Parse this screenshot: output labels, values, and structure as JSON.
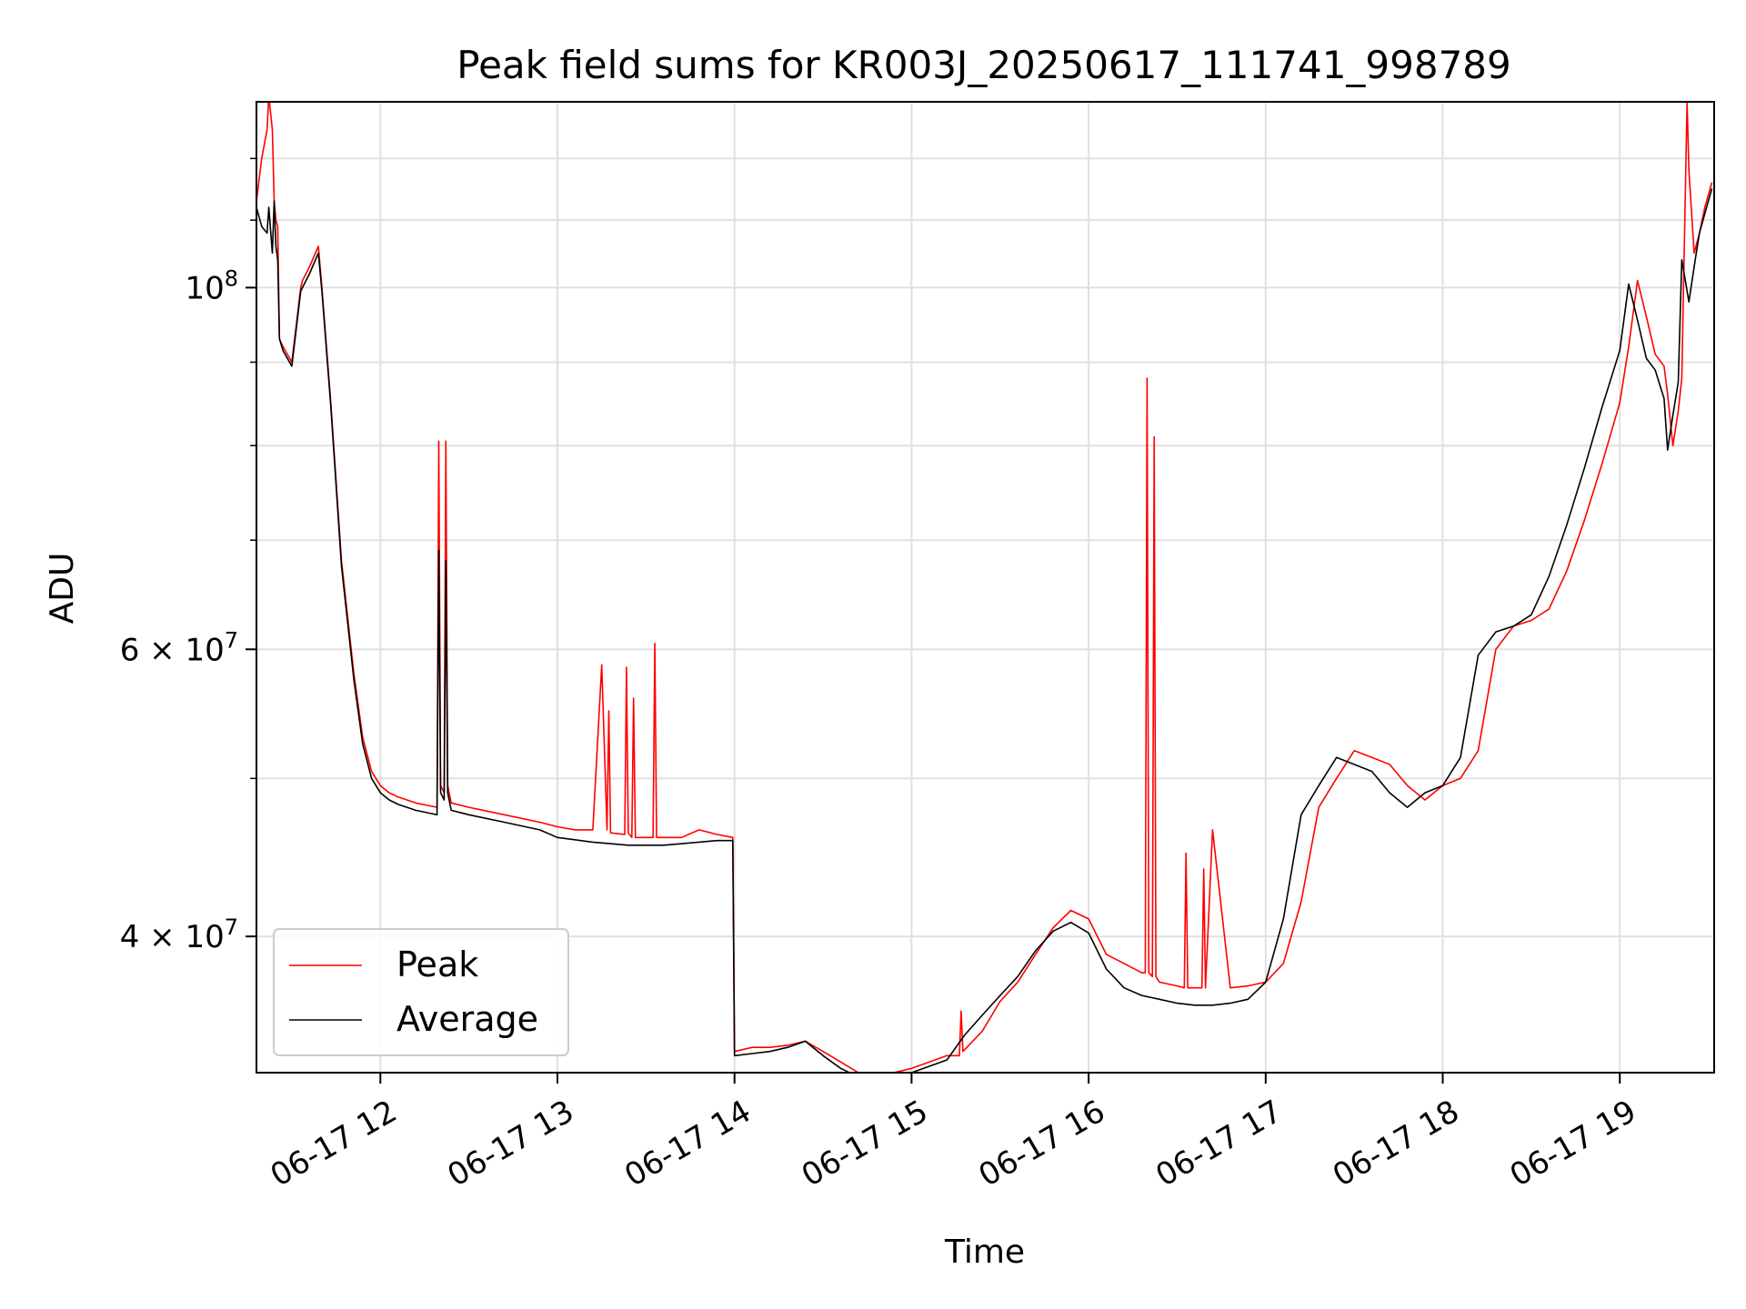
{
  "chart_data": {
    "type": "line",
    "title": "Peak field sums for KR003J_20250617_111741_998789",
    "xlabel": "Time",
    "ylabel": "ADU",
    "yscale": "log",
    "ylim": [
      33000000,
      130000000
    ],
    "xlim": [
      "06-17 11:18",
      "06-17 19:32"
    ],
    "grid": true,
    "legend_position": "lower-left",
    "x_ticks": [
      "06-17 12",
      "06-17 13",
      "06-17 14",
      "06-17 15",
      "06-17 16",
      "06-17 17",
      "06-17 18",
      "06-17 19"
    ],
    "y_ticks": [
      {
        "value": 40000000,
        "label_mantissa": "4 × 10",
        "label_exp": "7"
      },
      {
        "value": 60000000,
        "label_mantissa": "6 × 10",
        "label_exp": "7"
      },
      {
        "value": 100000000,
        "label_mantissa": "10",
        "label_exp": "8"
      }
    ],
    "x_unit_note": "x values are in hours of 06-17",
    "series": [
      {
        "name": "Peak",
        "color": "#ff0000",
        "x": [
          11.3,
          11.33,
          11.36,
          11.37,
          11.39,
          11.4,
          11.41,
          11.42,
          11.43,
          11.45,
          11.5,
          11.55,
          11.56,
          11.6,
          11.65,
          11.67,
          11.72,
          11.78,
          11.85,
          11.9,
          11.95,
          12.0,
          12.05,
          12.1,
          12.15,
          12.2,
          12.28,
          12.32,
          12.33,
          12.34,
          12.36,
          12.37,
          12.38,
          12.4,
          12.5,
          12.7,
          12.9,
          13.0,
          13.1,
          13.2,
          13.25,
          13.28,
          13.29,
          13.3,
          13.38,
          13.39,
          13.4,
          13.42,
          13.43,
          13.44,
          13.5,
          13.54,
          13.55,
          13.56,
          13.6,
          13.7,
          13.8,
          13.9,
          13.99,
          14.0,
          14.1,
          14.2,
          14.3,
          14.4,
          14.5,
          14.6,
          14.7,
          14.8,
          14.9,
          15.0,
          15.1,
          15.2,
          15.27,
          15.28,
          15.29,
          15.4,
          15.5,
          15.6,
          15.7,
          15.8,
          15.9,
          16.0,
          16.1,
          16.2,
          16.3,
          16.32,
          16.33,
          16.34,
          16.36,
          16.37,
          16.38,
          16.4,
          16.5,
          16.54,
          16.55,
          16.56,
          16.6,
          16.64,
          16.65,
          16.66,
          16.7,
          16.8,
          16.9,
          17.0,
          17.1,
          17.2,
          17.3,
          17.4,
          17.5,
          17.6,
          17.7,
          17.8,
          17.9,
          18.0,
          18.1,
          18.2,
          18.3,
          18.4,
          18.5,
          18.6,
          18.7,
          18.8,
          18.9,
          19.0,
          19.05,
          19.1,
          19.15,
          19.2,
          19.25,
          19.27,
          19.3,
          19.33,
          19.35,
          19.38,
          19.39,
          19.42,
          19.45,
          19.48,
          19.5,
          19.52
        ],
        "y": [
          113000000,
          120000000,
          125000000,
          131000000,
          125000000,
          113000000,
          110000000,
          109000000,
          93000000,
          92000000,
          90000000,
          100000000,
          101000000,
          103000000,
          106000000,
          100000000,
          85000000,
          68000000,
          58000000,
          53000000,
          50500000,
          49500000,
          49000000,
          48700000,
          48500000,
          48300000,
          48100000,
          48000000,
          80500000,
          49500000,
          49000000,
          80500000,
          49500000,
          48300000,
          48000000,
          47500000,
          47000000,
          46700000,
          46500000,
          46500000,
          58700000,
          46500000,
          55000000,
          46300000,
          46200000,
          58500000,
          46300000,
          46000000,
          56000000,
          46000000,
          46000000,
          46000000,
          60500000,
          46000000,
          46000000,
          46000000,
          46500000,
          46200000,
          46000000,
          34000000,
          34200000,
          34200000,
          34300000,
          34500000,
          34000000,
          33500000,
          33000000,
          33000000,
          33000000,
          33200000,
          33500000,
          33800000,
          33800000,
          36000000,
          34000000,
          35000000,
          36500000,
          37500000,
          39000000,
          40500000,
          41500000,
          41000000,
          39000000,
          38500000,
          38000000,
          38000000,
          88000000,
          38000000,
          37800000,
          81000000,
          37800000,
          37500000,
          37300000,
          37200000,
          45000000,
          37200000,
          37200000,
          37200000,
          44000000,
          37200000,
          46500000,
          37200000,
          37300000,
          37500000,
          38500000,
          42000000,
          48000000,
          50000000,
          52000000,
          51500000,
          51000000,
          49500000,
          48500000,
          49500000,
          50000000,
          52000000,
          60000000,
          62000000,
          62500000,
          63500000,
          67000000,
          72000000,
          78000000,
          85000000,
          92000000,
          101000000,
          96000000,
          91000000,
          89500000,
          86000000,
          80000000,
          84000000,
          88000000,
          130000000,
          118000000,
          105000000,
          108000000,
          112000000,
          114000000,
          116000000
        ]
      },
      {
        "name": "Average",
        "color": "#000000",
        "x": [
          11.3,
          11.33,
          11.36,
          11.37,
          11.39,
          11.4,
          11.41,
          11.42,
          11.43,
          11.45,
          11.5,
          11.55,
          11.56,
          11.6,
          11.65,
          11.67,
          11.72,
          11.78,
          11.85,
          11.9,
          11.95,
          12.0,
          12.05,
          12.1,
          12.15,
          12.2,
          12.28,
          12.32,
          12.33,
          12.34,
          12.36,
          12.37,
          12.38,
          12.4,
          12.5,
          12.7,
          12.9,
          13.0,
          13.2,
          13.4,
          13.6,
          13.8,
          13.9,
          13.99,
          14.0,
          14.1,
          14.2,
          14.3,
          14.4,
          14.5,
          14.6,
          14.7,
          14.8,
          14.9,
          15.0,
          15.1,
          15.2,
          15.3,
          15.4,
          15.5,
          15.6,
          15.7,
          15.8,
          15.9,
          16.0,
          16.1,
          16.2,
          16.3,
          16.4,
          16.5,
          16.6,
          16.7,
          16.8,
          16.9,
          17.0,
          17.1,
          17.2,
          17.3,
          17.4,
          17.5,
          17.6,
          17.7,
          17.8,
          17.9,
          18.0,
          18.1,
          18.2,
          18.3,
          18.4,
          18.5,
          18.6,
          18.7,
          18.8,
          18.9,
          19.0,
          19.05,
          19.1,
          19.15,
          19.2,
          19.25,
          19.27,
          19.3,
          19.33,
          19.35,
          19.37,
          19.39,
          19.42,
          19.45,
          19.48,
          19.5,
          19.52
        ],
        "y": [
          112000000,
          109000000,
          108000000,
          112000000,
          105000000,
          113000000,
          106000000,
          104000000,
          93000000,
          91500000,
          89500000,
          99500000,
          100000000,
          102000000,
          105000000,
          99500000,
          84500000,
          67500000,
          57500000,
          52500000,
          50000000,
          49000000,
          48500000,
          48200000,
          48000000,
          47800000,
          47600000,
          47500000,
          69000000,
          49000000,
          48500000,
          68000000,
          49000000,
          47800000,
          47500000,
          47000000,
          46500000,
          46000000,
          45700000,
          45500000,
          45500000,
          45700000,
          45800000,
          45800000,
          33800000,
          33900000,
          34000000,
          34200000,
          34500000,
          33800000,
          33200000,
          32800000,
          32900000,
          32900000,
          33000000,
          33300000,
          33600000,
          34800000,
          35800000,
          36800000,
          37800000,
          39200000,
          40300000,
          40800000,
          40200000,
          38200000,
          37200000,
          36800000,
          36600000,
          36400000,
          36300000,
          36300000,
          36400000,
          36600000,
          37500000,
          41000000,
          47500000,
          49500000,
          51500000,
          51000000,
          50500000,
          49000000,
          48000000,
          49000000,
          49500000,
          51500000,
          59500000,
          61500000,
          62000000,
          63000000,
          66500000,
          71500000,
          77500000,
          84500000,
          91500000,
          100500000,
          95500000,
          90500000,
          89000000,
          85500000,
          79500000,
          83500000,
          87500000,
          104000000,
          101000000,
          98000000,
          103000000,
          108000000,
          111000000,
          113000000,
          115000000
        ]
      }
    ]
  }
}
